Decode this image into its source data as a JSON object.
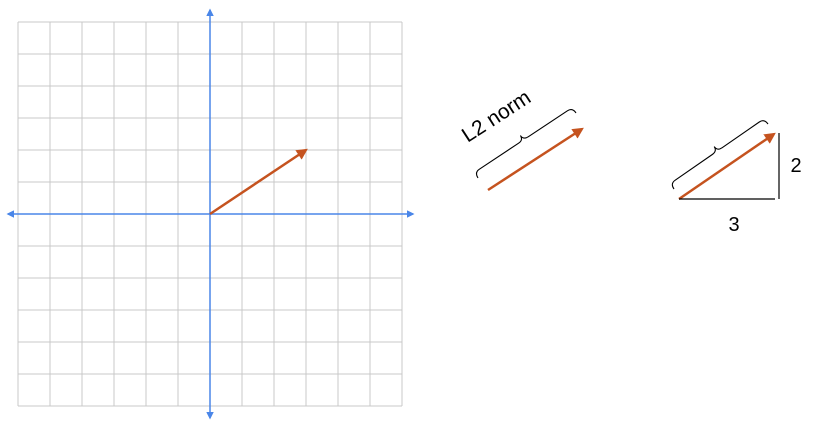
{
  "vector": {
    "x": 3,
    "y": 2
  },
  "labels": {
    "norm": "L2 norm",
    "base": "3",
    "height": "2"
  },
  "colors": {
    "grid": "#c8c8c8",
    "axis": "#4a86e8",
    "vector": "#c5531f",
    "ink": "#000000"
  },
  "icons": {
    "axis_arrow": "axis-arrowhead-icon",
    "vector_arrow": "vector-arrowhead-icon",
    "brace": "curly-brace-icon"
  }
}
